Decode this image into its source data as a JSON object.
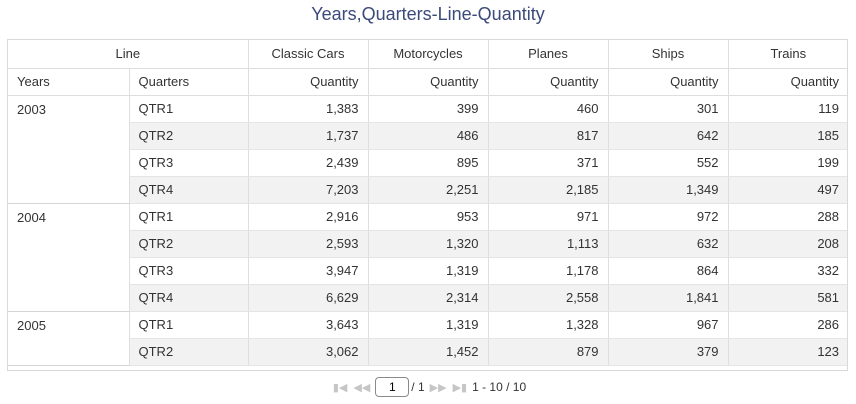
{
  "title": "Years,Quarters-Line-Quantity",
  "header": {
    "group_label": "Line",
    "lines": [
      "Classic Cars",
      "Motorcycles",
      "Planes",
      "Ships",
      "Trains"
    ],
    "years_label": "Years",
    "quarters_label": "Quarters",
    "measure_label": "Quantity"
  },
  "rows": [
    {
      "year": "2003",
      "quarters": [
        {
          "q": "QTR1",
          "v": [
            "1,383",
            "399",
            "460",
            "301",
            "119"
          ]
        },
        {
          "q": "QTR2",
          "v": [
            "1,737",
            "486",
            "817",
            "642",
            "185"
          ]
        },
        {
          "q": "QTR3",
          "v": [
            "2,439",
            "895",
            "371",
            "552",
            "199"
          ]
        },
        {
          "q": "QTR4",
          "v": [
            "7,203",
            "2,251",
            "2,185",
            "1,349",
            "497"
          ]
        }
      ]
    },
    {
      "year": "2004",
      "quarters": [
        {
          "q": "QTR1",
          "v": [
            "2,916",
            "953",
            "971",
            "972",
            "288"
          ]
        },
        {
          "q": "QTR2",
          "v": [
            "2,593",
            "1,320",
            "1,113",
            "632",
            "208"
          ]
        },
        {
          "q": "QTR3",
          "v": [
            "3,947",
            "1,319",
            "1,178",
            "864",
            "332"
          ]
        },
        {
          "q": "QTR4",
          "v": [
            "6,629",
            "2,314",
            "2,558",
            "1,841",
            "581"
          ]
        }
      ]
    },
    {
      "year": "2005",
      "quarters": [
        {
          "q": "QTR1",
          "v": [
            "3,643",
            "1,319",
            "1,328",
            "967",
            "286"
          ]
        },
        {
          "q": "QTR2",
          "v": [
            "3,062",
            "1,452",
            "879",
            "379",
            "123"
          ]
        }
      ]
    }
  ],
  "pager": {
    "current_page": "1",
    "total_pages": "/ 1",
    "range": "1 - 10 / 10",
    "icons": [
      "first-page-icon",
      "previous-page-icon",
      "next-page-icon",
      "last-page-icon"
    ]
  }
}
